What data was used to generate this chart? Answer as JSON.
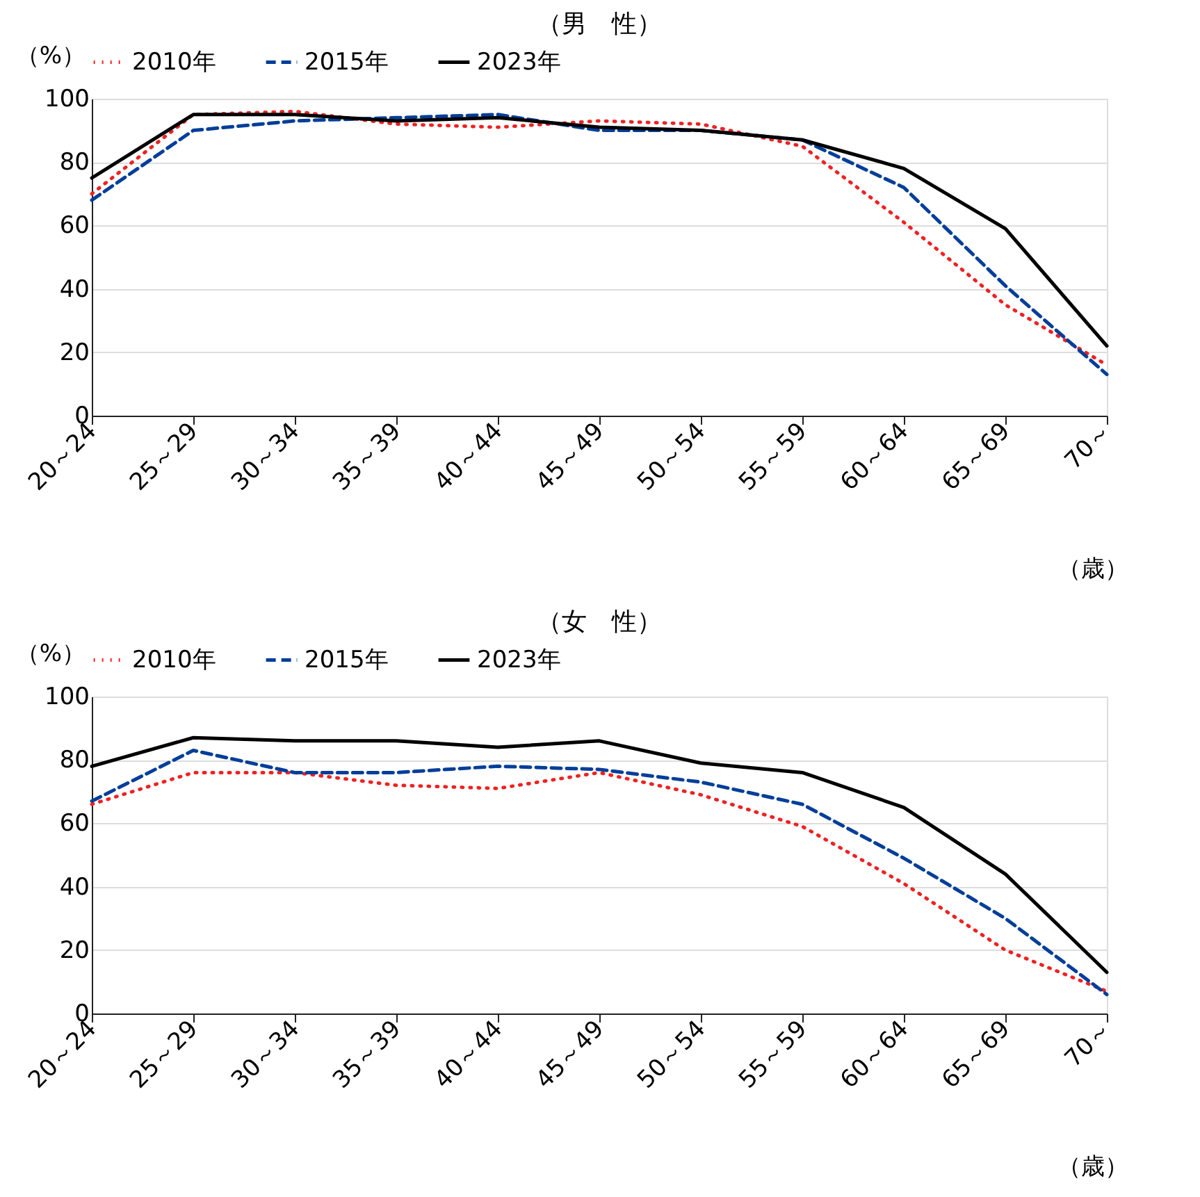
{
  "chart_data": [
    {
      "type": "line",
      "title": "（男　性）",
      "ylabel": "（%）",
      "xlabel": "（歳）",
      "categories": [
        "20～24",
        "25～29",
        "30～34",
        "35～39",
        "40～44",
        "45～49",
        "50～54",
        "55～59",
        "60～64",
        "65～69",
        "70～"
      ],
      "series": [
        {
          "name": "2010年",
          "color": "#ee2222",
          "line_style": "dotted",
          "values": [
            70,
            95,
            96,
            92,
            91,
            93,
            92,
            85,
            61,
            35,
            16
          ]
        },
        {
          "name": "2015年",
          "color": "#003e9a",
          "line_style": "dashed",
          "values": [
            68,
            90,
            93,
            94,
            95,
            90,
            90,
            87,
            72,
            41,
            13
          ]
        },
        {
          "name": "2023年",
          "color": "#000000",
          "line_style": "solid",
          "values": [
            75,
            95,
            95,
            93,
            94,
            91,
            90,
            87,
            78,
            59,
            22
          ]
        }
      ],
      "ylim": [
        0,
        100
      ],
      "yticks": [
        0,
        20,
        40,
        60,
        80,
        100
      ],
      "grid": "y",
      "legend": "top",
      "marker": "none"
    },
    {
      "type": "line",
      "title": "（女　性）",
      "ylabel": "（%）",
      "xlabel": "（歳）",
      "categories": [
        "20～24",
        "25～29",
        "30～34",
        "35～39",
        "40～44",
        "45～49",
        "50～54",
        "55～59",
        "60～64",
        "65～69",
        "70～"
      ],
      "series": [
        {
          "name": "2010年",
          "color": "#ee2222",
          "line_style": "dotted",
          "values": [
            66,
            76,
            76,
            72,
            71,
            76,
            69,
            59,
            41,
            20,
            7
          ]
        },
        {
          "name": "2015年",
          "color": "#003e9a",
          "line_style": "dashed",
          "values": [
            67,
            83,
            76,
            76,
            78,
            77,
            73,
            66,
            49,
            30,
            6
          ]
        },
        {
          "name": "2023年",
          "color": "#000000",
          "line_style": "solid",
          "values": [
            78,
            87,
            86,
            86,
            84,
            86,
            79,
            76,
            65,
            44,
            13
          ]
        }
      ],
      "ylim": [
        0,
        100
      ],
      "yticks": [
        0,
        20,
        40,
        60,
        80,
        100
      ],
      "grid": "y",
      "legend": "top",
      "marker": "none"
    }
  ]
}
